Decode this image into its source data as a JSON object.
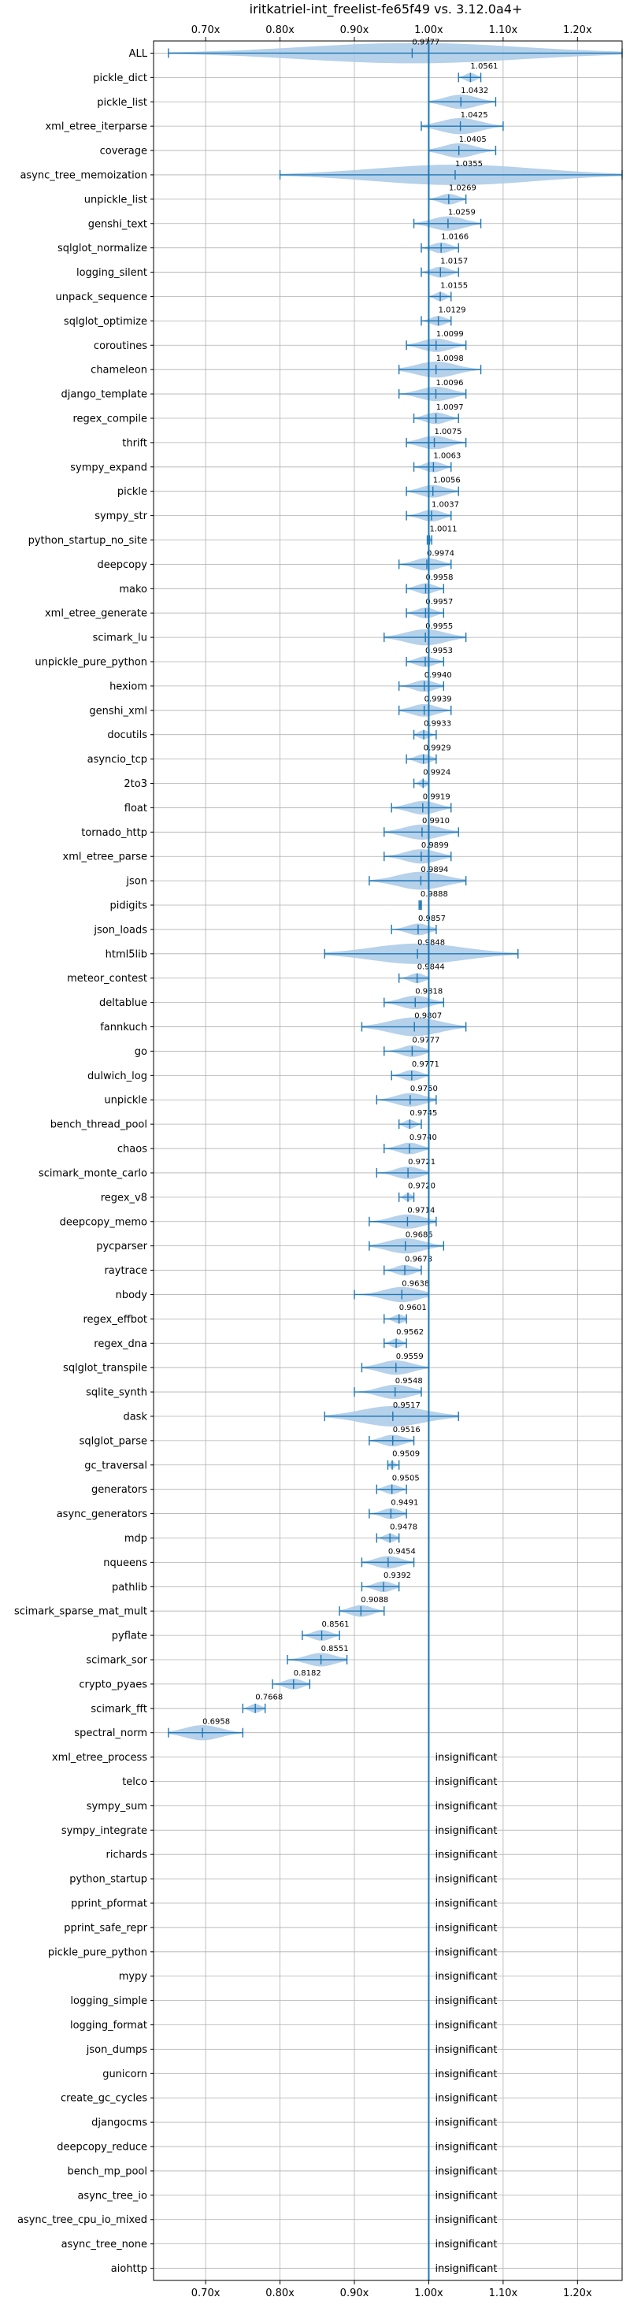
{
  "chart_data": {
    "type": "violin",
    "title": "iritkatriel-int_freelist-fe65f49 vs. 3.12.0a4+",
    "x_tick_labels": [
      "0.70x",
      "0.80x",
      "0.90x",
      "1.00x",
      "1.10x",
      "1.20x"
    ],
    "x_ticks": [
      0.7,
      0.8,
      0.9,
      1.0,
      1.1,
      1.2
    ],
    "xlim": [
      0.63,
      1.26
    ],
    "reference_line": 1.0,
    "grid": true,
    "insignificant_label": "insignificant",
    "benchmarks": [
      {
        "name": "ALL",
        "mean": 0.9777,
        "min": 0.65,
        "max": 1.26
      },
      {
        "name": "pickle_dict",
        "mean": 1.0561,
        "min": 1.04,
        "max": 1.07
      },
      {
        "name": "pickle_list",
        "mean": 1.0432,
        "min": 1.0,
        "max": 1.09
      },
      {
        "name": "xml_etree_iterparse",
        "mean": 1.0425,
        "min": 0.99,
        "max": 1.1
      },
      {
        "name": "coverage",
        "mean": 1.0405,
        "min": 1.0,
        "max": 1.09
      },
      {
        "name": "async_tree_memoization",
        "mean": 1.0355,
        "min": 0.8,
        "max": 1.26
      },
      {
        "name": "unpickle_list",
        "mean": 1.0269,
        "min": 1.0,
        "max": 1.05
      },
      {
        "name": "genshi_text",
        "mean": 1.0259,
        "min": 0.98,
        "max": 1.07
      },
      {
        "name": "sqlglot_normalize",
        "mean": 1.0166,
        "min": 0.99,
        "max": 1.04
      },
      {
        "name": "logging_silent",
        "mean": 1.0157,
        "min": 0.99,
        "max": 1.04
      },
      {
        "name": "unpack_sequence",
        "mean": 1.0155,
        "min": 1.0,
        "max": 1.03
      },
      {
        "name": "sqlglot_optimize",
        "mean": 1.0129,
        "min": 0.99,
        "max": 1.03
      },
      {
        "name": "coroutines",
        "mean": 1.0099,
        "min": 0.97,
        "max": 1.05
      },
      {
        "name": "chameleon",
        "mean": 1.0098,
        "min": 0.96,
        "max": 1.07
      },
      {
        "name": "django_template",
        "mean": 1.0096,
        "min": 0.96,
        "max": 1.05
      },
      {
        "name": "regex_compile",
        "mean": 1.0097,
        "min": 0.98,
        "max": 1.04
      },
      {
        "name": "thrift",
        "mean": 1.0075,
        "min": 0.97,
        "max": 1.05
      },
      {
        "name": "sympy_expand",
        "mean": 1.0063,
        "min": 0.98,
        "max": 1.03
      },
      {
        "name": "pickle",
        "mean": 1.0056,
        "min": 0.97,
        "max": 1.04
      },
      {
        "name": "sympy_str",
        "mean": 1.0037,
        "min": 0.97,
        "max": 1.03
      },
      {
        "name": "python_startup_no_site",
        "mean": 1.0011,
        "min": 0.998,
        "max": 1.004
      },
      {
        "name": "deepcopy",
        "mean": 0.9974,
        "min": 0.96,
        "max": 1.03
      },
      {
        "name": "mako",
        "mean": 0.9958,
        "min": 0.97,
        "max": 1.02
      },
      {
        "name": "xml_etree_generate",
        "mean": 0.9957,
        "min": 0.97,
        "max": 1.02
      },
      {
        "name": "scimark_lu",
        "mean": 0.9955,
        "min": 0.94,
        "max": 1.05
      },
      {
        "name": "unpickle_pure_python",
        "mean": 0.9953,
        "min": 0.97,
        "max": 1.02
      },
      {
        "name": "hexiom",
        "mean": 0.994,
        "min": 0.96,
        "max": 1.02
      },
      {
        "name": "genshi_xml",
        "mean": 0.9939,
        "min": 0.96,
        "max": 1.03
      },
      {
        "name": "docutils",
        "mean": 0.9933,
        "min": 0.98,
        "max": 1.01
      },
      {
        "name": "asyncio_tcp",
        "mean": 0.9929,
        "min": 0.97,
        "max": 1.01
      },
      {
        "name": "2to3",
        "mean": 0.9924,
        "min": 0.98,
        "max": 1.0
      },
      {
        "name": "float",
        "mean": 0.9919,
        "min": 0.95,
        "max": 1.03
      },
      {
        "name": "tornado_http",
        "mean": 0.991,
        "min": 0.94,
        "max": 1.04
      },
      {
        "name": "xml_etree_parse",
        "mean": 0.9899,
        "min": 0.94,
        "max": 1.03
      },
      {
        "name": "json",
        "mean": 0.9894,
        "min": 0.92,
        "max": 1.05
      },
      {
        "name": "pidigits",
        "mean": 0.9888,
        "min": 0.987,
        "max": 0.99
      },
      {
        "name": "json_loads",
        "mean": 0.9857,
        "min": 0.95,
        "max": 1.01
      },
      {
        "name": "html5lib",
        "mean": 0.9848,
        "min": 0.86,
        "max": 1.12
      },
      {
        "name": "meteor_contest",
        "mean": 0.9844,
        "min": 0.96,
        "max": 1.0
      },
      {
        "name": "deltablue",
        "mean": 0.9818,
        "min": 0.94,
        "max": 1.02
      },
      {
        "name": "fannkuch",
        "mean": 0.9807,
        "min": 0.91,
        "max": 1.05
      },
      {
        "name": "go",
        "mean": 0.9777,
        "min": 0.94,
        "max": 1.0
      },
      {
        "name": "dulwich_log",
        "mean": 0.9771,
        "min": 0.95,
        "max": 1.0
      },
      {
        "name": "unpickle",
        "mean": 0.975,
        "min": 0.93,
        "max": 1.01
      },
      {
        "name": "bench_thread_pool",
        "mean": 0.9745,
        "min": 0.96,
        "max": 0.99
      },
      {
        "name": "chaos",
        "mean": 0.974,
        "min": 0.94,
        "max": 1.0
      },
      {
        "name": "scimark_monte_carlo",
        "mean": 0.9721,
        "min": 0.93,
        "max": 1.0
      },
      {
        "name": "regex_v8",
        "mean": 0.972,
        "min": 0.96,
        "max": 0.98
      },
      {
        "name": "deepcopy_memo",
        "mean": 0.9714,
        "min": 0.92,
        "max": 1.01
      },
      {
        "name": "pycparser",
        "mean": 0.9685,
        "min": 0.92,
        "max": 1.02
      },
      {
        "name": "raytrace",
        "mean": 0.9678,
        "min": 0.94,
        "max": 0.99
      },
      {
        "name": "nbody",
        "mean": 0.9638,
        "min": 0.9,
        "max": 1.0
      },
      {
        "name": "regex_effbot",
        "mean": 0.9601,
        "min": 0.94,
        "max": 0.97
      },
      {
        "name": "regex_dna",
        "mean": 0.9562,
        "min": 0.94,
        "max": 0.97
      },
      {
        "name": "sqlglot_transpile",
        "mean": 0.9559,
        "min": 0.91,
        "max": 1.0
      },
      {
        "name": "sqlite_synth",
        "mean": 0.9548,
        "min": 0.9,
        "max": 0.99
      },
      {
        "name": "dask",
        "mean": 0.9517,
        "min": 0.86,
        "max": 1.04
      },
      {
        "name": "sqlglot_parse",
        "mean": 0.9516,
        "min": 0.92,
        "max": 0.98
      },
      {
        "name": "gc_traversal",
        "mean": 0.9509,
        "min": 0.945,
        "max": 0.96
      },
      {
        "name": "generators",
        "mean": 0.9505,
        "min": 0.93,
        "max": 0.97
      },
      {
        "name": "async_generators",
        "mean": 0.9491,
        "min": 0.92,
        "max": 0.97
      },
      {
        "name": "mdp",
        "mean": 0.9478,
        "min": 0.93,
        "max": 0.96
      },
      {
        "name": "nqueens",
        "mean": 0.9454,
        "min": 0.91,
        "max": 0.98
      },
      {
        "name": "pathlib",
        "mean": 0.9392,
        "min": 0.91,
        "max": 0.96
      },
      {
        "name": "scimark_sparse_mat_mult",
        "mean": 0.9088,
        "min": 0.88,
        "max": 0.94
      },
      {
        "name": "pyflate",
        "mean": 0.8561,
        "min": 0.83,
        "max": 0.88
      },
      {
        "name": "scimark_sor",
        "mean": 0.8551,
        "min": 0.81,
        "max": 0.89
      },
      {
        "name": "crypto_pyaes",
        "mean": 0.8182,
        "min": 0.79,
        "max": 0.84
      },
      {
        "name": "scimark_fft",
        "mean": 0.7668,
        "min": 0.75,
        "max": 0.78
      },
      {
        "name": "spectral_norm",
        "mean": 0.6958,
        "min": 0.65,
        "max": 0.75
      },
      {
        "name": "xml_etree_process",
        "insignificant": true
      },
      {
        "name": "telco",
        "insignificant": true
      },
      {
        "name": "sympy_sum",
        "insignificant": true
      },
      {
        "name": "sympy_integrate",
        "insignificant": true
      },
      {
        "name": "richards",
        "insignificant": true
      },
      {
        "name": "python_startup",
        "insignificant": true
      },
      {
        "name": "pprint_pformat",
        "insignificant": true
      },
      {
        "name": "pprint_safe_repr",
        "insignificant": true
      },
      {
        "name": "pickle_pure_python",
        "insignificant": true
      },
      {
        "name": "mypy",
        "insignificant": true
      },
      {
        "name": "logging_simple",
        "insignificant": true
      },
      {
        "name": "logging_format",
        "insignificant": true
      },
      {
        "name": "json_dumps",
        "insignificant": true
      },
      {
        "name": "gunicorn",
        "insignificant": true
      },
      {
        "name": "create_gc_cycles",
        "insignificant": true
      },
      {
        "name": "djangocms",
        "insignificant": true
      },
      {
        "name": "deepcopy_reduce",
        "insignificant": true
      },
      {
        "name": "bench_mp_pool",
        "insignificant": true
      },
      {
        "name": "async_tree_io",
        "insignificant": true
      },
      {
        "name": "async_tree_cpu_io_mixed",
        "insignificant": true
      },
      {
        "name": "async_tree_none",
        "insignificant": true
      },
      {
        "name": "aiohttp",
        "insignificant": true
      }
    ]
  },
  "colors": {
    "line": "#1f77b4",
    "violin": "#a9c9e6",
    "grid": "#b0b0b0",
    "axis": "#000000"
  }
}
